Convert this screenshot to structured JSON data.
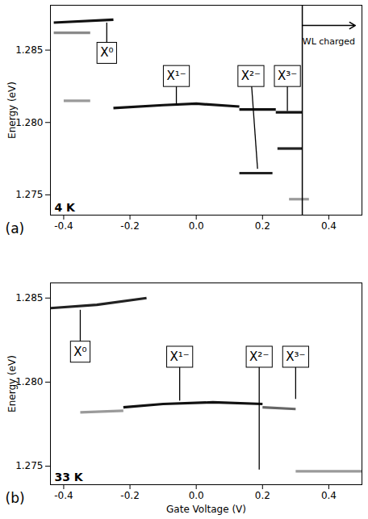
{
  "chart_data": [
    {
      "type": "line",
      "panel": "(a)",
      "temperature": "4 K",
      "ylabel": "Energy (eV)",
      "xlim": [
        -0.44,
        0.5
      ],
      "ylim": [
        1.2736,
        1.2881
      ],
      "xticks": [
        -0.4,
        -0.2,
        {
          "value": 0,
          "label": "0.0"
        },
        0.2,
        0.4
      ],
      "yticks": [
        1.275,
        {
          "value": 1.28,
          "label": "1.280"
        },
        1.285
      ],
      "series": [
        {
          "color": "#111111",
          "x": [
            -0.43,
            -0.25
          ],
          "values": [
            1.2869,
            1.2871
          ]
        },
        {
          "color": "#8a8a8a",
          "x": [
            -0.43,
            -0.32
          ],
          "values": [
            1.2862,
            1.2862
          ]
        },
        {
          "color": "#9a9a9a",
          "x": [
            -0.4,
            -0.32
          ],
          "values": [
            1.2815,
            1.2815
          ]
        },
        {
          "color": "#111111",
          "x": [
            -0.25,
            -0.1,
            0.0,
            0.13
          ],
          "values": [
            1.281,
            1.2812,
            1.2813,
            1.2811
          ]
        },
        {
          "color": "#111111",
          "x": [
            0.13,
            0.24
          ],
          "values": [
            1.2809,
            1.2809
          ]
        },
        {
          "color": "#222222",
          "x": [
            0.13,
            0.23
          ],
          "values": [
            1.2765,
            1.2765
          ]
        },
        {
          "color": "#111111",
          "x": [
            0.24,
            0.32
          ],
          "values": [
            1.2807,
            1.2807
          ]
        },
        {
          "color": "#222222",
          "x": [
            0.245,
            0.32
          ],
          "values": [
            1.2782,
            1.2782
          ]
        },
        {
          "color": "#9a9a9a",
          "x": [
            0.28,
            0.34
          ],
          "values": [
            1.2747,
            1.2747
          ]
        }
      ],
      "vertical_lines": [
        0.32
      ],
      "arrows": [
        {
          "x1": 0.32,
          "y1": 1.2867,
          "x2": 0.48,
          "y2": 1.2867
        }
      ],
      "annotations": [
        {
          "text": "X⁰",
          "x": -0.27,
          "y": 1.2848,
          "x_to": -0.27,
          "y_to": 1.2869
        },
        {
          "text": "X¹⁻",
          "x": -0.06,
          "y": 1.2832,
          "x_to": -0.06,
          "y_to": 1.2812
        },
        {
          "text": "X²⁻",
          "x": 0.165,
          "y": 1.2832,
          "x_to": 0.185,
          "y_to": 1.2768
        },
        {
          "text": "X³⁻",
          "x": 0.275,
          "y": 1.2832,
          "x_to": 0.275,
          "y_to": 1.2808
        },
        {
          "text": "WL charged",
          "x": 0.4,
          "y": 1.2856
        }
      ]
    },
    {
      "type": "line",
      "panel": "(b)",
      "temperature": "33 K",
      "xlabel": "Gate Voltage (V)",
      "ylabel": "Energy (eV)",
      "xlim": [
        -0.44,
        0.5
      ],
      "ylim": [
        1.2739,
        1.2859
      ],
      "xticks": [
        -0.4,
        -0.2,
        {
          "value": 0,
          "label": "0.0"
        },
        0.2,
        0.4
      ],
      "yticks": [
        1.275,
        {
          "value": 1.28,
          "label": "1.280"
        },
        1.285
      ],
      "series": [
        {
          "color": "#222222",
          "x": [
            -0.44,
            -0.3,
            -0.15
          ],
          "values": [
            1.2844,
            1.2846,
            1.285
          ]
        },
        {
          "color": "#9a9a9a",
          "x": [
            -0.35,
            -0.22
          ],
          "values": [
            1.2782,
            1.2783
          ]
        },
        {
          "color": "#111111",
          "x": [
            -0.22,
            -0.1,
            0.05,
            0.2
          ],
          "values": [
            1.2785,
            1.2787,
            1.2788,
            1.2787
          ]
        },
        {
          "color": "#666666",
          "x": [
            0.2,
            0.3
          ],
          "values": [
            1.2785,
            1.2784
          ]
        },
        {
          "color": "#9a9a9a",
          "x": [
            0.3,
            0.5
          ],
          "values": [
            1.2747,
            1.2747
          ]
        }
      ],
      "annotations": [
        {
          "text": "X⁰",
          "x": -0.35,
          "y": 1.2818,
          "x_to": -0.35,
          "y_to": 1.2843
        },
        {
          "text": "X¹⁻",
          "x": -0.05,
          "y": 1.2815,
          "x_to": -0.05,
          "y_to": 1.2789
        },
        {
          "text": "X²⁻",
          "x": 0.19,
          "y": 1.2815,
          "x_to": 0.19,
          "y_to": 1.2748
        },
        {
          "text": "X³⁻",
          "x": 0.3,
          "y": 1.2815,
          "x_to": 0.3,
          "y_to": 1.279
        }
      ]
    }
  ]
}
